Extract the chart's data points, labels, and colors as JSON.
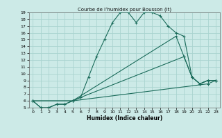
{
  "title": "Courbe de l’humidex pour Bousson (It)",
  "xlabel": "Humidex (Indice chaleur)",
  "bg_color": "#cceae7",
  "grid_color": "#aad4d0",
  "line_color": "#1a6b5a",
  "xlim": [
    -0.5,
    23.5
  ],
  "ylim": [
    5,
    19
  ],
  "xticks": [
    0,
    1,
    2,
    3,
    4,
    5,
    6,
    7,
    8,
    9,
    10,
    11,
    12,
    13,
    14,
    15,
    16,
    17,
    18,
    19,
    20,
    21,
    22,
    23
  ],
  "yticks": [
    5,
    6,
    7,
    8,
    9,
    10,
    11,
    12,
    13,
    14,
    15,
    16,
    17,
    18,
    19
  ],
  "series": [
    {
      "x": [
        0,
        1,
        2,
        3,
        4,
        5,
        6,
        7,
        8,
        9,
        10,
        11,
        12,
        13,
        14,
        15,
        16,
        17,
        18,
        19,
        20,
        21,
        22,
        23
      ],
      "y": [
        6,
        5,
        5,
        5.5,
        5.5,
        6,
        6.5,
        9.5,
        12.5,
        15,
        17.5,
        19,
        19,
        17.5,
        19,
        19,
        18.5,
        17,
        16,
        15.5,
        9.5,
        8.5,
        9,
        9
      ]
    },
    {
      "x": [
        0,
        1,
        2,
        3,
        4,
        5,
        6,
        19,
        20,
        21,
        22,
        23
      ],
      "y": [
        6,
        5,
        5,
        5.5,
        5.5,
        6,
        6.5,
        12.5,
        9.5,
        8.5,
        9,
        9
      ]
    },
    {
      "x": [
        0,
        5,
        22,
        23
      ],
      "y": [
        6,
        6,
        8.5,
        9
      ]
    },
    {
      "x": [
        0,
        5,
        18,
        19,
        20,
        21,
        22,
        23
      ],
      "y": [
        6,
        6,
        15.5,
        12.5,
        9.5,
        8.5,
        9,
        9
      ]
    }
  ]
}
